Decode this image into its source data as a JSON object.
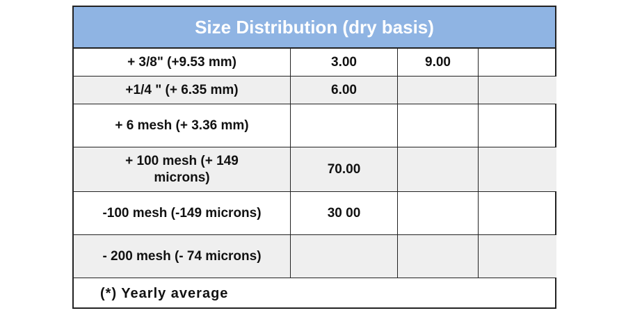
{
  "table": {
    "title": "Size Distribution (dry basis)",
    "rows": [
      {
        "label": "+ 3/8\" (+9.53 mm)",
        "c2": "3.00",
        "c3": "9.00",
        "c4": ""
      },
      {
        "label": "+1/4 \" (+ 6.35 mm)",
        "c2": "6.00",
        "c3": "",
        "c4": ""
      },
      {
        "label": "+ 6 mesh (+ 3.36 mm)",
        "c2": "",
        "c3": "",
        "c4": ""
      },
      {
        "label": "+ 100 mesh (+ 149 microns)",
        "c2": "70.00",
        "c3": "",
        "c4": ""
      },
      {
        "label": "-100 mesh (-149 microns)",
        "c2": "30 00",
        "c3": "",
        "c4": ""
      },
      {
        "label": "- 200 mesh (- 74 microns)",
        "c2": "",
        "c3": "",
        "c4": ""
      }
    ],
    "footnote": "(*) Yearly average"
  }
}
